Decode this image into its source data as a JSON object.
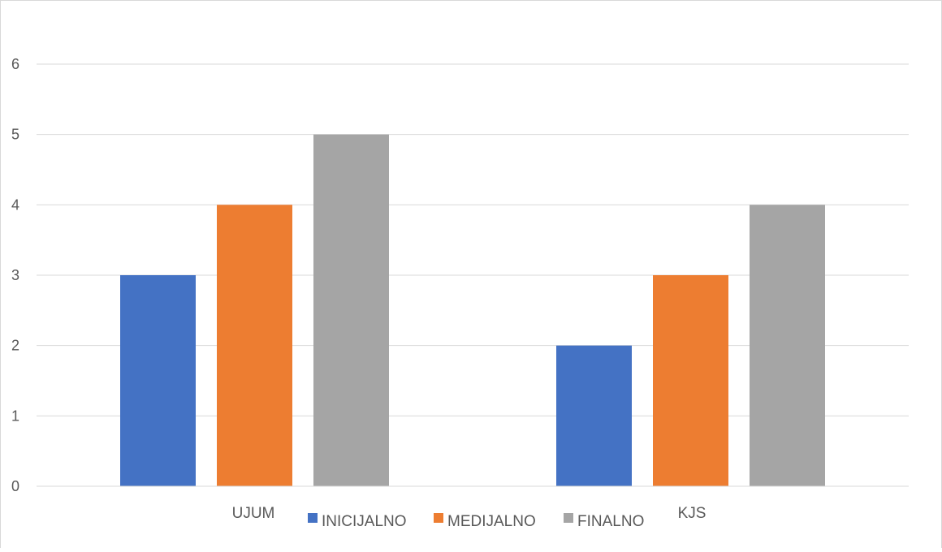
{
  "chart_data": {
    "type": "bar",
    "title": "",
    "xlabel": "",
    "ylabel": "",
    "categories": [
      "UJUM",
      "KJS"
    ],
    "series": [
      {
        "name": "INICIJALNO",
        "values": [
          3,
          2
        ],
        "color": "#4472C4"
      },
      {
        "name": "MEDIJALNO",
        "values": [
          4,
          3
        ],
        "color": "#ED7D31"
      },
      {
        "name": "FINALNO",
        "values": [
          5,
          4
        ],
        "color": "#A5A5A5"
      }
    ],
    "ylim": [
      0,
      6
    ],
    "yticks": [
      0,
      1,
      2,
      3,
      4,
      5,
      6
    ],
    "grid": true,
    "legend_position": "bottom"
  }
}
